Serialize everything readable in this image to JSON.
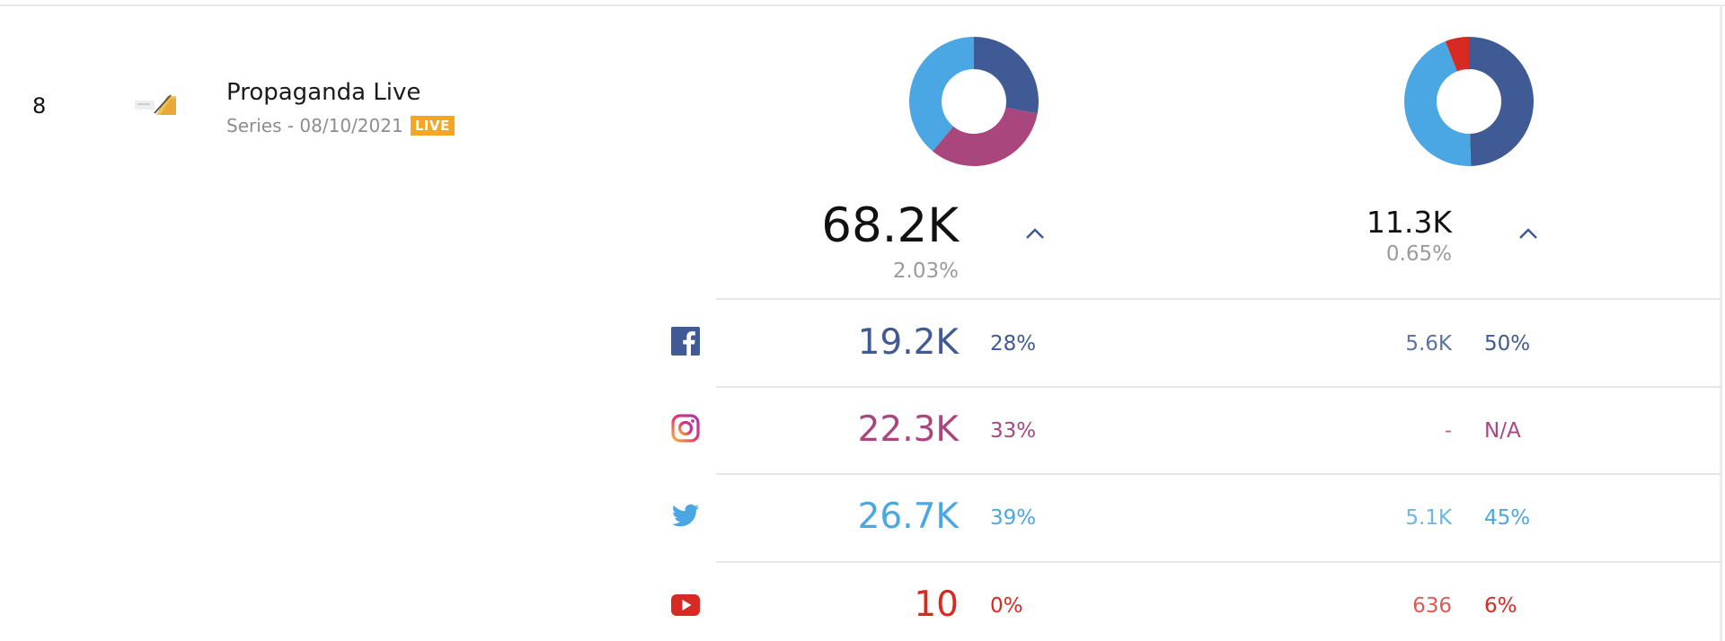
{
  "colors": {
    "facebook": "#3f5a94",
    "instagram": "#a9467d",
    "twitter": "#4aa7e4",
    "youtube": "#d62a23",
    "live_badge": "#f5a623"
  },
  "row": {
    "rank": "8",
    "title": "Propaganda Live",
    "subtitle": "Series - 08/10/2021",
    "badge": "LIVE"
  },
  "col1": {
    "total": "68.2K",
    "total_pct": "2.03%",
    "donut_shares": {
      "facebook": 28,
      "instagram": 33,
      "twitter": 39,
      "youtube": 0
    }
  },
  "col2": {
    "total": "11.3K",
    "total_pct": "0.65%",
    "donut_shares": {
      "facebook": 50,
      "instagram": 0,
      "twitter": 45,
      "youtube": 6
    }
  },
  "networks": [
    {
      "name": "facebook",
      "icon": "facebook-icon",
      "value": "19.2K",
      "share": "28%",
      "value2": "5.6K",
      "share2": "50%"
    },
    {
      "name": "instagram",
      "icon": "instagram-icon",
      "value": "22.3K",
      "share": "33%",
      "value2": "-",
      "share2": "N/A"
    },
    {
      "name": "twitter",
      "icon": "twitter-icon",
      "value": "26.7K",
      "share": "39%",
      "value2": "5.1K",
      "share2": "45%"
    },
    {
      "name": "youtube",
      "icon": "youtube-icon",
      "value": "10",
      "share": "0%",
      "value2": "636",
      "share2": "6%"
    }
  ]
}
